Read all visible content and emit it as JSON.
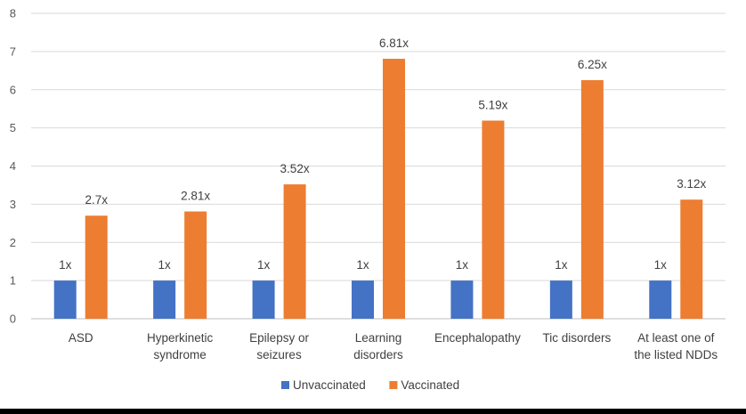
{
  "chart_data": {
    "type": "bar",
    "categories": [
      [
        "ASD"
      ],
      [
        "Hyperkinetic",
        "syndrome"
      ],
      [
        "Epilepsy or",
        "seizures"
      ],
      [
        "Learning",
        "disorders"
      ],
      [
        "Encephalopathy"
      ],
      [
        "Tic disorders"
      ],
      [
        "At least one of",
        "the listed NDDs"
      ]
    ],
    "series": [
      {
        "name": "Unvaccinated",
        "color": "#4472c4",
        "values": [
          1,
          1,
          1,
          1,
          1,
          1,
          1
        ],
        "labels": [
          "1x",
          "1x",
          "1x",
          "1x",
          "1x",
          "1x",
          "1x"
        ]
      },
      {
        "name": "Vaccinated",
        "color": "#ed7d31",
        "values": [
          2.7,
          2.81,
          3.52,
          6.81,
          5.19,
          6.25,
          3.12
        ],
        "labels": [
          "2.7x",
          "2.81x",
          "3.52x",
          "6.81x",
          "5.19x",
          "6.25x",
          "3.12x"
        ]
      }
    ],
    "ylim": [
      0,
      8
    ],
    "yticks": [
      0,
      1,
      2,
      3,
      4,
      5,
      6,
      7,
      8
    ],
    "grid": true,
    "legend": "bottom"
  }
}
